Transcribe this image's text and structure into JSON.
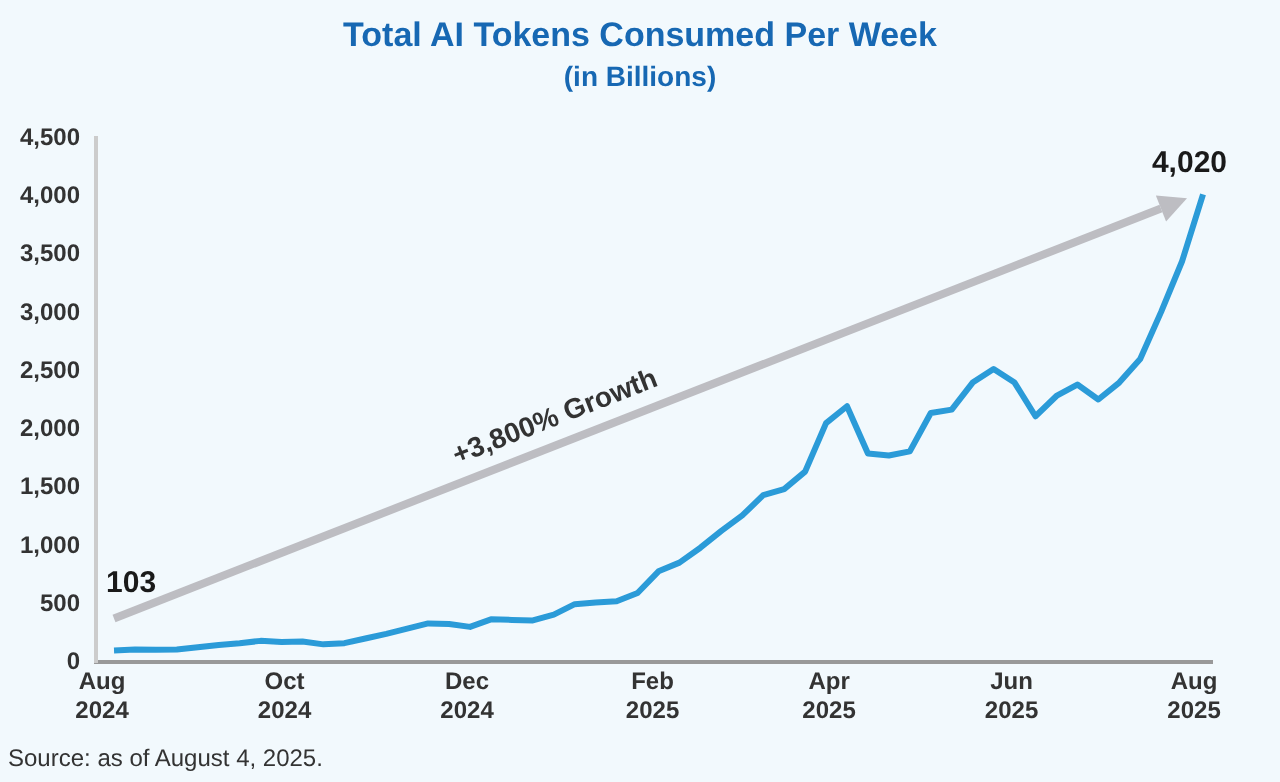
{
  "chart_data": {
    "type": "line",
    "title": "Total AI Tokens Consumed Per Week",
    "subtitle": "(in Billions)",
    "x": [
      "2024-08-05",
      "2024-08-12",
      "2024-08-19",
      "2024-08-26",
      "2024-09-02",
      "2024-09-09",
      "2024-09-16",
      "2024-09-23",
      "2024-09-30",
      "2024-10-07",
      "2024-10-14",
      "2024-10-21",
      "2024-10-28",
      "2024-11-04",
      "2024-11-11",
      "2024-11-18",
      "2024-11-25",
      "2024-12-02",
      "2024-12-09",
      "2024-12-16",
      "2024-12-23",
      "2024-12-30",
      "2025-01-06",
      "2025-01-13",
      "2025-01-20",
      "2025-01-27",
      "2025-02-03",
      "2025-02-10",
      "2025-02-17",
      "2025-02-24",
      "2025-03-03",
      "2025-03-10",
      "2025-03-17",
      "2025-03-24",
      "2025-03-31",
      "2025-04-07",
      "2025-04-14",
      "2025-04-21",
      "2025-04-28",
      "2025-05-05",
      "2025-05-12",
      "2025-05-19",
      "2025-05-26",
      "2025-06-02",
      "2025-06-09",
      "2025-06-16",
      "2025-06-23",
      "2025-06-30",
      "2025-07-07",
      "2025-07-14",
      "2025-07-21",
      "2025-07-28",
      "2025-08-04"
    ],
    "series": [
      {
        "color": "#2b9bd8",
        "values": [
          103,
          110,
          108,
          110,
          130,
          150,
          165,
          185,
          175,
          180,
          155,
          165,
          205,
          245,
          290,
          335,
          330,
          305,
          370,
          365,
          360,
          410,
          500,
          515,
          525,
          596,
          782,
          857,
          985,
          1129,
          1262,
          1436,
          1488,
          1638,
          2055,
          2200,
          1794,
          1777,
          1812,
          2142,
          2171,
          2403,
          2519,
          2403,
          2114,
          2288,
          2386,
          2258,
          2403,
          2606,
          3010,
          3445,
          4020
        ]
      }
    ],
    "xlim": [
      "2024-07-30",
      "2025-08-07"
    ],
    "xticks": [
      {
        "value": "2024-08-01",
        "label": "Aug 2024"
      },
      {
        "value": "2024-10-01",
        "label": "Oct 2024"
      },
      {
        "value": "2024-12-01",
        "label": "Dec 2024"
      },
      {
        "value": "2025-02-01",
        "label": "Feb 2025"
      },
      {
        "value": "2025-04-01",
        "label": "Apr 2025"
      },
      {
        "value": "2025-06-01",
        "label": "Jun 2025"
      },
      {
        "value": "2025-08-01",
        "label": "Aug 2025"
      }
    ],
    "ylim": [
      0,
      4500
    ],
    "yticks": [
      0,
      500,
      {
        "value": 1000,
        "label": "1,000"
      },
      {
        "value": 1500,
        "label": "1,500"
      },
      {
        "value": 2000,
        "label": "2,000"
      },
      {
        "value": 2500,
        "label": "2,500"
      },
      {
        "value": 3000,
        "label": "3,000"
      },
      {
        "value": 3500,
        "label": "3,500"
      },
      {
        "value": 4000,
        "label": "4,000"
      },
      {
        "value": 4500,
        "label": "4,500"
      }
    ],
    "grid": false,
    "legend": false,
    "marker": "none",
    "line_style": "solid",
    "annotations": [
      "+3,800% Growth",
      {
        "text": "103",
        "x": "2024-08-05",
        "y": 103
      },
      {
        "text": "4,020",
        "x": "2025-08-04",
        "y": 4020
      },
      "Source: as of August 4, 2025."
    ]
  }
}
